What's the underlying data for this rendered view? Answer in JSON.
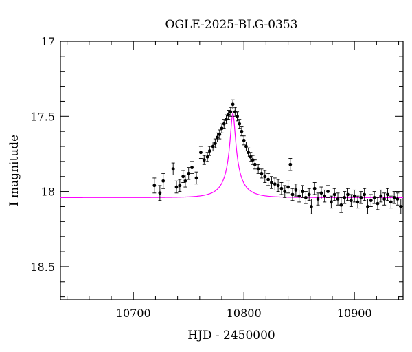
{
  "chart_data": {
    "type": "scatter",
    "title": "OGLE-2025-BLG-0353",
    "xlabel": "HJD - 2450000",
    "ylabel": "I magnitude",
    "xlim": [
      10634,
      10944
    ],
    "ylim": [
      18.72,
      17.0
    ],
    "y_inverted": true,
    "x_ticks": [
      10700,
      10800,
      10900
    ],
    "x_tick_labels": [
      "10700",
      "10800",
      "10900"
    ],
    "y_ticks": [
      17,
      17.5,
      18,
      18.5
    ],
    "y_tick_labels": [
      "17",
      "17.5",
      "18",
      "18.5"
    ],
    "grid": false,
    "model_color": "#ff00ff",
    "point_color": "#000000",
    "model": {
      "name": "",
      "baseline_mag": 18.04,
      "peak_mag": 17.48,
      "t0": 10790,
      "tE": 18.5
    },
    "series": [
      {
        "name": "",
        "points": [
          [
            10719,
            17.96,
            0.05
          ],
          [
            10724,
            18.01,
            0.05
          ],
          [
            10727,
            17.93,
            0.05
          ],
          [
            10736,
            17.85,
            0.04
          ],
          [
            10739,
            17.97,
            0.04
          ],
          [
            10742,
            17.96,
            0.04
          ],
          [
            10745,
            17.9,
            0.04
          ],
          [
            10747,
            17.93,
            0.04
          ],
          [
            10750,
            17.88,
            0.04
          ],
          [
            10753,
            17.84,
            0.04
          ],
          [
            10757,
            17.91,
            0.04
          ],
          [
            10761,
            17.74,
            0.04
          ],
          [
            10764,
            17.79,
            0.03
          ],
          [
            10767,
            17.77,
            0.03
          ],
          [
            10769,
            17.73,
            0.03
          ],
          [
            10772,
            17.7,
            0.03
          ],
          [
            10774,
            17.68,
            0.03
          ],
          [
            10776,
            17.64,
            0.03
          ],
          [
            10778,
            17.62,
            0.03
          ],
          [
            10780,
            17.58,
            0.03
          ],
          [
            10782,
            17.55,
            0.03
          ],
          [
            10784,
            17.52,
            0.03
          ],
          [
            10786,
            17.49,
            0.03
          ],
          [
            10788,
            17.47,
            0.03
          ],
          [
            10790,
            17.42,
            0.03
          ],
          [
            10792,
            17.47,
            0.03
          ],
          [
            10794,
            17.5,
            0.03
          ],
          [
            10796,
            17.55,
            0.03
          ],
          [
            10798,
            17.6,
            0.03
          ],
          [
            10800,
            17.66,
            0.03
          ],
          [
            10802,
            17.7,
            0.03
          ],
          [
            10804,
            17.74,
            0.03
          ],
          [
            10806,
            17.77,
            0.03
          ],
          [
            10808,
            17.79,
            0.03
          ],
          [
            10810,
            17.82,
            0.03
          ],
          [
            10813,
            17.85,
            0.03
          ],
          [
            10816,
            17.88,
            0.03
          ],
          [
            10819,
            17.9,
            0.04
          ],
          [
            10822,
            17.92,
            0.04
          ],
          [
            10825,
            17.94,
            0.04
          ],
          [
            10828,
            17.95,
            0.04
          ],
          [
            10831,
            17.96,
            0.04
          ],
          [
            10834,
            17.98,
            0.04
          ],
          [
            10837,
            18.0,
            0.04
          ],
          [
            10840,
            17.97,
            0.04
          ],
          [
            10842,
            17.82,
            0.04
          ],
          [
            10844,
            18.02,
            0.04
          ],
          [
            10847,
            17.99,
            0.04
          ],
          [
            10850,
            18.03,
            0.04
          ],
          [
            10853,
            18.0,
            0.04
          ],
          [
            10856,
            18.04,
            0.04
          ],
          [
            10859,
            18.02,
            0.04
          ],
          [
            10861,
            18.1,
            0.05
          ],
          [
            10864,
            17.98,
            0.04
          ],
          [
            10867,
            18.05,
            0.04
          ],
          [
            10870,
            18.01,
            0.04
          ],
          [
            10873,
            18.03,
            0.04
          ],
          [
            10876,
            18.0,
            0.04
          ],
          [
            10879,
            18.07,
            0.04
          ],
          [
            10882,
            18.02,
            0.04
          ],
          [
            10885,
            18.05,
            0.04
          ],
          [
            10888,
            18.09,
            0.05
          ],
          [
            10891,
            18.04,
            0.04
          ],
          [
            10894,
            18.02,
            0.04
          ],
          [
            10897,
            18.06,
            0.04
          ],
          [
            10900,
            18.03,
            0.04
          ],
          [
            10903,
            18.07,
            0.04
          ],
          [
            10906,
            18.04,
            0.04
          ],
          [
            10909,
            18.02,
            0.04
          ],
          [
            10912,
            18.1,
            0.05
          ],
          [
            10915,
            18.06,
            0.04
          ],
          [
            10918,
            18.04,
            0.04
          ],
          [
            10921,
            18.08,
            0.04
          ],
          [
            10924,
            18.03,
            0.04
          ],
          [
            10927,
            18.05,
            0.04
          ],
          [
            10930,
            18.02,
            0.04
          ],
          [
            10933,
            18.07,
            0.04
          ],
          [
            10936,
            18.04,
            0.04
          ],
          [
            10939,
            18.05,
            0.04
          ],
          [
            10942,
            18.1,
            0.05
          ]
        ]
      }
    ]
  }
}
